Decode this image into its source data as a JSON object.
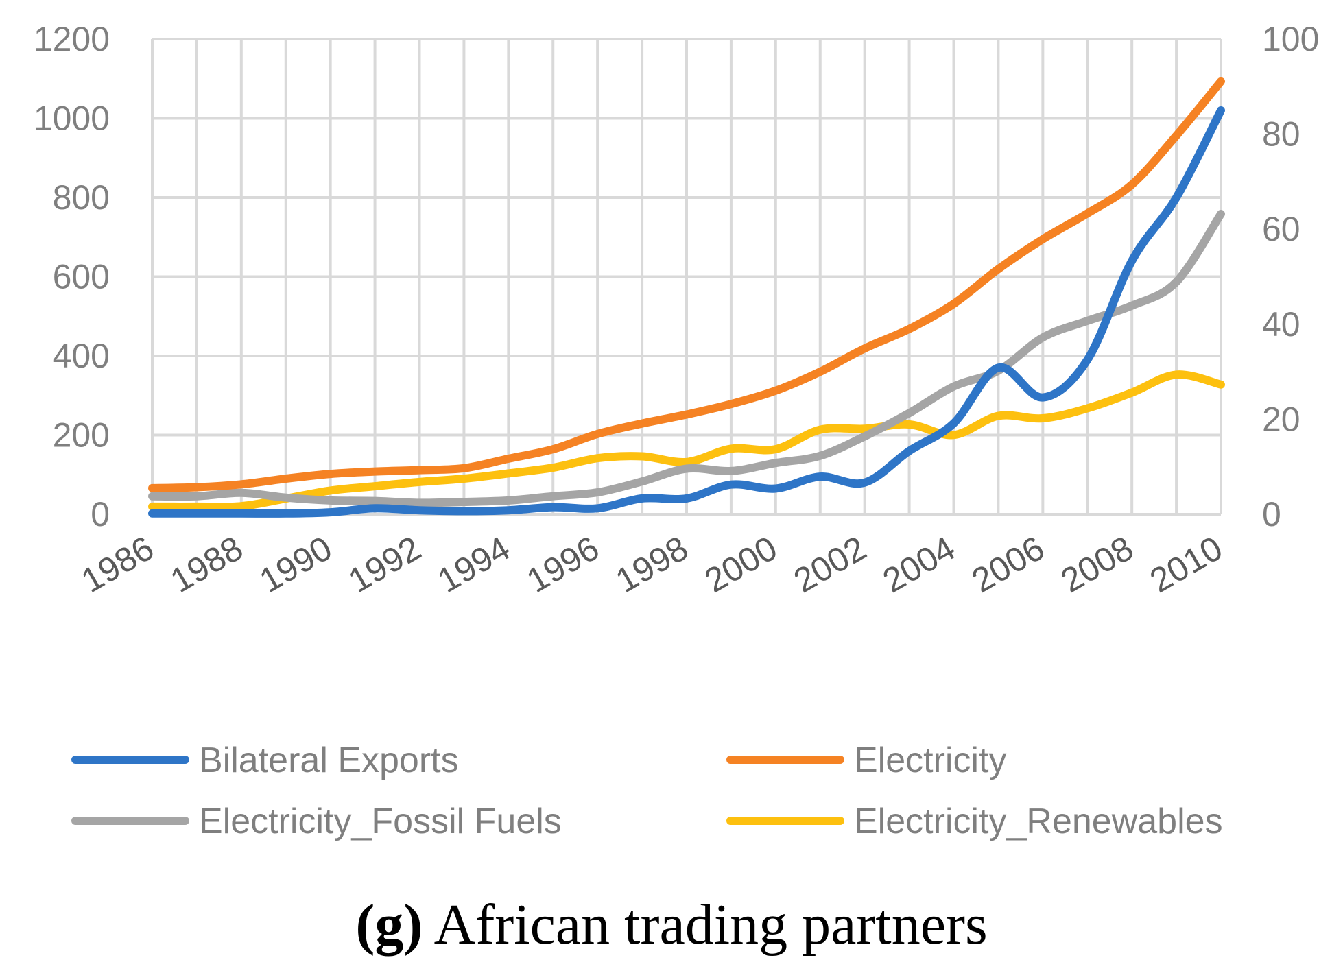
{
  "chart_data": {
    "type": "line",
    "title": "",
    "xlabel": "",
    "ylabel_left": "",
    "ylabel_right": "",
    "x": [
      1986,
      1987,
      1988,
      1989,
      1990,
      1991,
      1992,
      1993,
      1994,
      1995,
      1996,
      1997,
      1998,
      1999,
      2000,
      2001,
      2002,
      2003,
      2004,
      2005,
      2006,
      2007,
      2008,
      2009,
      2010
    ],
    "x_tick_labels": [
      "1986",
      "1988",
      "1990",
      "1992",
      "1994",
      "1996",
      "1998",
      "2000",
      "2002",
      "2004",
      "2006",
      "2008",
      "2010"
    ],
    "ylim_left": [
      0,
      1200
    ],
    "y_ticks_left": [
      "0",
      "200",
      "400",
      "600",
      "800",
      "1000",
      "1200"
    ],
    "ylim_right": [
      0,
      100
    ],
    "y_ticks_right": [
      "0",
      "20",
      "40",
      "60",
      "80",
      "100"
    ],
    "grid": true,
    "legend_position": "bottom",
    "series": [
      {
        "name": "Bilateral Exports",
        "axis": "left",
        "color": "#2e75c7",
        "values": [
          2,
          2,
          2,
          2,
          5,
          15,
          10,
          8,
          10,
          18,
          15,
          40,
          40,
          75,
          65,
          95,
          80,
          160,
          230,
          370,
          295,
          390,
          640,
          800,
          1020
        ]
      },
      {
        "name": "Electricity",
        "axis": "right",
        "color": "#f58223",
        "values": [
          5.5,
          5.7,
          6.3,
          7.5,
          8.5,
          9.0,
          9.3,
          9.7,
          11.7,
          13.7,
          16.9,
          19.1,
          21.0,
          23.2,
          26.0,
          30.0,
          34.9,
          39.0,
          44.3,
          51.6,
          57.9,
          63.3,
          69.4,
          79.7,
          91.1
        ]
      },
      {
        "name": "Electricity_Fossil Fuels",
        "axis": "right",
        "color": "#a5a5a5",
        "values": [
          3.8,
          3.8,
          4.5,
          3.5,
          2.9,
          2.8,
          2.4,
          2.6,
          2.9,
          3.8,
          4.6,
          6.9,
          9.6,
          9.1,
          10.8,
          12.3,
          16.4,
          21.3,
          26.9,
          30.2,
          37.2,
          40.7,
          43.9,
          48.9,
          63.2
        ]
      },
      {
        "name": "Electricity_Renewables",
        "axis": "right",
        "color": "#fdc00f",
        "values": [
          1.6,
          1.6,
          1.7,
          3.3,
          5.0,
          5.9,
          6.8,
          7.5,
          8.6,
          9.8,
          11.8,
          12.2,
          11.0,
          13.8,
          13.7,
          17.8,
          18.0,
          18.9,
          16.7,
          20.7,
          20.2,
          22.3,
          25.6,
          29.4,
          27.3
        ]
      }
    ]
  },
  "caption": {
    "label": "(g)",
    "text": " African trading partners"
  }
}
